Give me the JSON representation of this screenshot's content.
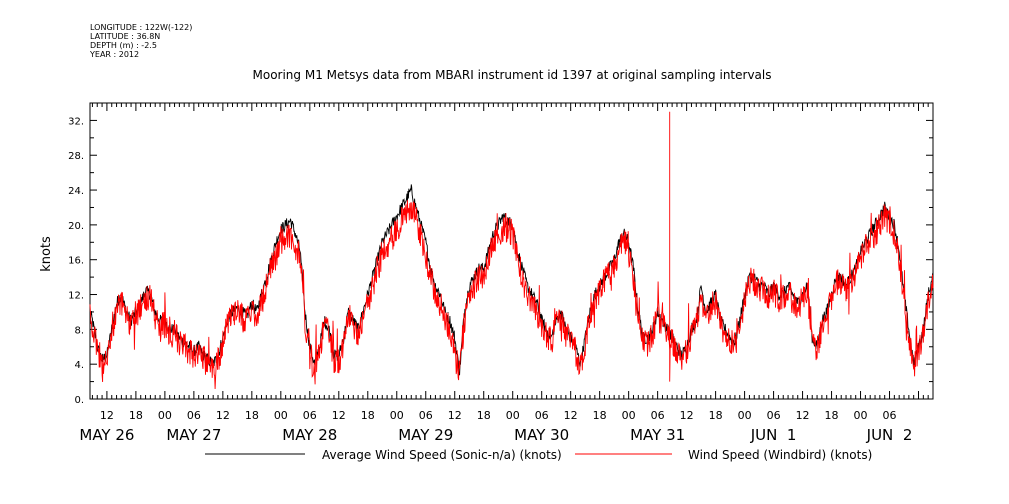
{
  "meta": {
    "longitude": "LONGITUDE : 122W(-122)",
    "latitude": "LATITUDE : 36.8N",
    "depth": "DEPTH (m) : -2.5",
    "year": "YEAR : 2012"
  },
  "chart_data": {
    "type": "line",
    "title": "Mooring M1 Metsys data from MBARI instrument id 1397 at original sampling intervals",
    "ylabel": "knots",
    "xlabel": "",
    "x_unit": "hours since 2012-05-26 00:00",
    "xlim": [
      8.5,
      183
    ],
    "ylim": [
      0,
      34
    ],
    "y_ticks": [
      0,
      4,
      8,
      12,
      16,
      20,
      24,
      28,
      32
    ],
    "y_tick_labels": [
      "0.",
      "4.",
      "8.",
      "12.",
      "16.",
      "20.",
      "24.",
      "28.",
      "32."
    ],
    "x_hour_ticks": [
      {
        "x": 12,
        "label": "12"
      },
      {
        "x": 18,
        "label": "18"
      },
      {
        "x": 24,
        "label": "00"
      },
      {
        "x": 30,
        "label": "06"
      },
      {
        "x": 36,
        "label": "12"
      },
      {
        "x": 42,
        "label": "18"
      },
      {
        "x": 48,
        "label": "00"
      },
      {
        "x": 54,
        "label": "06"
      },
      {
        "x": 60,
        "label": "12"
      },
      {
        "x": 66,
        "label": "18"
      },
      {
        "x": 72,
        "label": "00"
      },
      {
        "x": 78,
        "label": "06"
      },
      {
        "x": 84,
        "label": "12"
      },
      {
        "x": 90,
        "label": "18"
      },
      {
        "x": 96,
        "label": "00"
      },
      {
        "x": 102,
        "label": "06"
      },
      {
        "x": 108,
        "label": "12"
      },
      {
        "x": 114,
        "label": "18"
      },
      {
        "x": 120,
        "label": "00"
      },
      {
        "x": 126,
        "label": "06"
      },
      {
        "x": 132,
        "label": "12"
      },
      {
        "x": 138,
        "label": "18"
      },
      {
        "x": 144,
        "label": "00"
      },
      {
        "x": 150,
        "label": "06"
      },
      {
        "x": 156,
        "label": "12"
      },
      {
        "x": 162,
        "label": "18"
      },
      {
        "x": 168,
        "label": "00"
      },
      {
        "x": 174,
        "label": "06"
      }
    ],
    "x_day_labels": [
      {
        "x": 12,
        "label": "MAY 26"
      },
      {
        "x": 30,
        "label": "MAY 27"
      },
      {
        "x": 54,
        "label": "MAY 28"
      },
      {
        "x": 78,
        "label": "MAY 29"
      },
      {
        "x": 102,
        "label": "MAY 30"
      },
      {
        "x": 126,
        "label": "MAY 31"
      },
      {
        "x": 150,
        "label": "JUN  1"
      },
      {
        "x": 174,
        "label": "JUN  2"
      }
    ],
    "legend_position": "bottom",
    "grid": false,
    "series": [
      {
        "name": "Average Wind Speed (Sonic-n/a) (knots)",
        "color": "#000000",
        "x": [
          8.5,
          9,
          10,
          11,
          12,
          13,
          14,
          15,
          16,
          17,
          18,
          19,
          20,
          21,
          22,
          23,
          24,
          25,
          26,
          27,
          28,
          29,
          30,
          31,
          32,
          33,
          34,
          35,
          36,
          37,
          38,
          39,
          40,
          41,
          42,
          43,
          44,
          45,
          46,
          47,
          48,
          49,
          50,
          51,
          52,
          53,
          54,
          55,
          56,
          57,
          58,
          59,
          60,
          61,
          62,
          63,
          64,
          65,
          66,
          67,
          68,
          69,
          70,
          71,
          72,
          73,
          74,
          75,
          76,
          77,
          78,
          79,
          80,
          81,
          82,
          83,
          84,
          85,
          86,
          87,
          88,
          89,
          90,
          91,
          92,
          93,
          94,
          95,
          96,
          97,
          98,
          99,
          100,
          101,
          102,
          103,
          104,
          105,
          106,
          107,
          108,
          109,
          110,
          111,
          112,
          113,
          114,
          115,
          116,
          117,
          118,
          119,
          120,
          121,
          122,
          123,
          124,
          125,
          126,
          127,
          128,
          129,
          130,
          131,
          132,
          133,
          134,
          135,
          136,
          137,
          138,
          139,
          140,
          141,
          142,
          143,
          144,
          145,
          146,
          147,
          148,
          149,
          150,
          151,
          152,
          153,
          154,
          155,
          156,
          157,
          158,
          159,
          160,
          161,
          162,
          163,
          164,
          165,
          166,
          167,
          168,
          169,
          170,
          171,
          172,
          173,
          174,
          175,
          176,
          177,
          178,
          179,
          180,
          181,
          182,
          183
        ],
        "values": [
          10,
          9,
          6,
          4.5,
          5,
          8,
          11,
          12,
          10,
          9,
          10,
          11,
          12.5,
          12,
          10,
          9,
          9,
          8,
          8,
          7,
          6.5,
          6,
          5.5,
          6,
          5,
          4.5,
          4,
          5,
          7,
          9,
          10,
          10.5,
          10,
          9.5,
          11,
          10,
          12,
          14,
          16,
          18,
          19.5,
          20,
          20.5,
          19,
          17,
          10,
          6,
          4,
          6,
          9,
          8,
          5,
          5,
          7,
          10,
          9,
          8,
          10,
          12,
          14,
          16,
          18,
          19,
          20,
          21,
          22,
          23,
          24,
          22,
          20,
          18,
          15,
          13,
          12,
          10,
          9,
          7,
          3,
          10,
          13,
          14,
          15,
          15,
          17,
          19,
          20,
          21,
          20.5,
          20,
          17,
          15,
          13,
          12,
          11,
          9,
          8,
          7,
          9,
          10,
          8,
          7,
          6,
          4,
          7,
          10,
          12,
          13,
          14,
          15,
          16,
          18,
          19,
          18,
          15,
          10,
          7,
          7,
          8,
          10,
          9,
          8,
          7,
          6,
          5,
          6,
          8,
          9,
          13,
          10,
          11,
          12,
          9,
          8,
          7,
          6.5,
          9,
          12,
          14,
          14,
          13,
          13,
          12,
          13,
          12,
          12,
          13,
          12,
          11,
          12,
          13,
          7,
          6,
          9,
          10,
          12,
          14,
          14,
          13,
          14,
          15,
          17,
          18,
          19,
          20,
          21,
          22,
          21,
          20,
          17,
          12,
          8,
          4,
          6,
          8,
          12,
          14
        ],
        "noise": 0.7
      },
      {
        "name": "Wind Speed (Windbird) (knots)",
        "color": "#ff0000",
        "x": [
          8.5,
          9,
          10,
          11,
          12,
          13,
          14,
          15,
          16,
          17,
          18,
          19,
          20,
          21,
          22,
          23,
          24,
          25,
          26,
          27,
          28,
          29,
          30,
          31,
          32,
          33,
          34,
          35,
          36,
          37,
          38,
          39,
          40,
          41,
          42,
          43,
          44,
          45,
          46,
          47,
          48,
          49,
          50,
          51,
          52,
          53,
          54,
          55,
          56,
          57,
          58,
          59,
          60,
          61,
          62,
          63,
          64,
          65,
          66,
          67,
          68,
          69,
          70,
          71,
          72,
          73,
          74,
          75,
          76,
          77,
          78,
          79,
          80,
          81,
          82,
          83,
          84,
          85,
          86,
          87,
          88,
          89,
          90,
          91,
          92,
          93,
          94,
          95,
          96,
          97,
          98,
          99,
          100,
          101,
          102,
          103,
          104,
          105,
          106,
          107,
          108,
          109,
          110,
          111,
          112,
          113,
          114,
          115,
          116,
          117,
          118,
          119,
          120,
          121,
          122,
          123,
          124,
          125,
          126,
          127,
          128,
          129,
          130,
          131,
          132,
          133,
          134,
          135,
          136,
          137,
          138,
          139,
          140,
          141,
          142,
          143,
          144,
          145,
          146,
          147,
          148,
          149,
          150,
          151,
          152,
          153,
          154,
          155,
          156,
          157,
          158,
          159,
          160,
          161,
          162,
          163,
          164,
          165,
          166,
          167,
          168,
          169,
          170,
          171,
          172,
          173,
          174,
          175,
          176,
          177,
          178,
          179,
          180,
          181,
          182,
          183
        ],
        "values": [
          9.5,
          8.5,
          5.5,
          4.2,
          5,
          7.5,
          10,
          11,
          9.5,
          8.5,
          9.5,
          10.5,
          11.5,
          11,
          9.5,
          8.5,
          8.5,
          7.5,
          7.5,
          6.5,
          6,
          5.5,
          5,
          5.5,
          4.5,
          4,
          3.5,
          4.5,
          6.5,
          8.5,
          9.5,
          10,
          9.5,
          9,
          10.5,
          9.5,
          11,
          13,
          15,
          16.5,
          18,
          18.5,
          19,
          17.5,
          16,
          9,
          5,
          3.5,
          5.5,
          8.5,
          7.5,
          4.5,
          4.5,
          6.5,
          9.5,
          8.5,
          7.5,
          9.5,
          11,
          13,
          15,
          16.5,
          17.5,
          18.5,
          19.5,
          20.5,
          21.5,
          22,
          20.5,
          18.5,
          16.5,
          14,
          12,
          11,
          9,
          8,
          6,
          2.5,
          9,
          12,
          13,
          14,
          14,
          16,
          18,
          19,
          19.5,
          19.5,
          19,
          16,
          14,
          12,
          11,
          10,
          8.5,
          7.5,
          6.5,
          8.5,
          9.5,
          7.5,
          6.5,
          5.5,
          3.5,
          6.5,
          9.5,
          11.5,
          12.5,
          13.5,
          14.5,
          15.5,
          17,
          18,
          17,
          14,
          9,
          6.5,
          6.5,
          7.5,
          9.5,
          8.5,
          7.5,
          6.5,
          5.5,
          4.5,
          5.5,
          7.5,
          8.5,
          12,
          9.5,
          10.5,
          11.5,
          8.5,
          7.5,
          6.5,
          6,
          8.5,
          11.5,
          13.5,
          13.5,
          12.5,
          12.5,
          11.5,
          12.5,
          11.5,
          11.5,
          12.5,
          11.5,
          10.5,
          11.5,
          12.5,
          6.5,
          5.5,
          8.5,
          9.5,
          11.5,
          13.5,
          13.5,
          12.5,
          13.5,
          14.5,
          16,
          17,
          18,
          19,
          20,
          21,
          20,
          19,
          16,
          11,
          7.5,
          3.5,
          5.5,
          7.5,
          11.5,
          13.5
        ],
        "noise": 1.6,
        "spike": {
          "x": 128.5,
          "value": 33
        }
      }
    ]
  }
}
